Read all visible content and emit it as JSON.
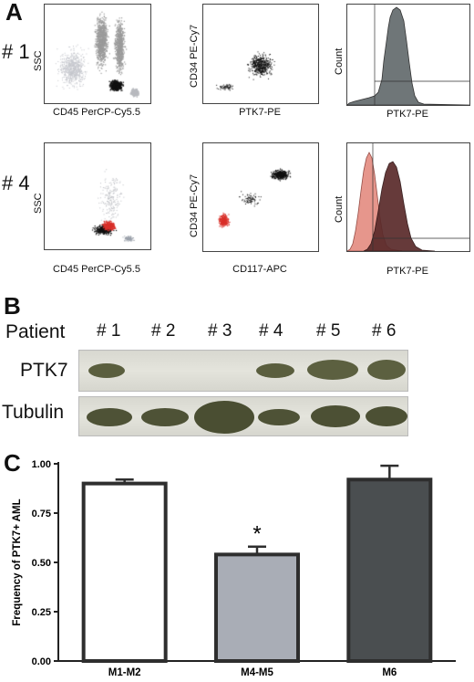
{
  "panels": {
    "A": "A",
    "B": "B",
    "C": "C"
  },
  "panelA": {
    "rows": [
      {
        "label": "# 1",
        "scatter1": {
          "ylabel": "SSC",
          "xlabel": "CD45 PerCP-Cy5.5"
        },
        "scatter2": {
          "ylabel": "CD34 PE-Cy7",
          "xlabel": "PTK7-PE"
        },
        "hist": {
          "ylabel": "Count",
          "xlabel": "PTK7-PE"
        }
      },
      {
        "label": "# 4",
        "scatter1": {
          "ylabel": "SSC",
          "xlabel": "CD45 PerCP-Cy5.5"
        },
        "scatter2": {
          "ylabel": "CD34 PE-Cy7",
          "xlabel": "CD117-APC"
        },
        "hist": {
          "ylabel": "Count",
          "xlabel": "PTK7-PE"
        }
      }
    ],
    "colors": {
      "gray": "#9a9a9a",
      "black": "#111111",
      "red": "#d9302a",
      "histGray": "#6f7678",
      "histSalmon": "#e48b80",
      "histMaroon": "#5a2a2a"
    }
  },
  "panelB": {
    "header": "Patient",
    "lanes": [
      "# 1",
      "# 2",
      "# 3",
      "# 4",
      "# 5",
      "# 6"
    ],
    "rows": [
      {
        "label": "PTK7",
        "presence": [
          true,
          false,
          false,
          true,
          true,
          true
        ]
      },
      {
        "label": "Tubulin",
        "presence": [
          true,
          true,
          true,
          true,
          true,
          true
        ]
      }
    ]
  },
  "chart_data": {
    "type": "bar",
    "categories": [
      "M1-M2",
      "M4-M5",
      "M6"
    ],
    "values": [
      0.9,
      0.54,
      0.92
    ],
    "errors": [
      0.02,
      0.04,
      0.07
    ],
    "colors": [
      "#ffffff",
      "#a9adb6",
      "#4a4e50"
    ],
    "ylabel": "Frequency of PTK7+ AML",
    "xlabel": "",
    "ylim": [
      0,
      1
    ],
    "yticks": [
      "0.00",
      "0.25",
      "0.50",
      "0.75",
      "1.00"
    ],
    "annotation": {
      "category": "M4-M5",
      "text": "*"
    }
  }
}
